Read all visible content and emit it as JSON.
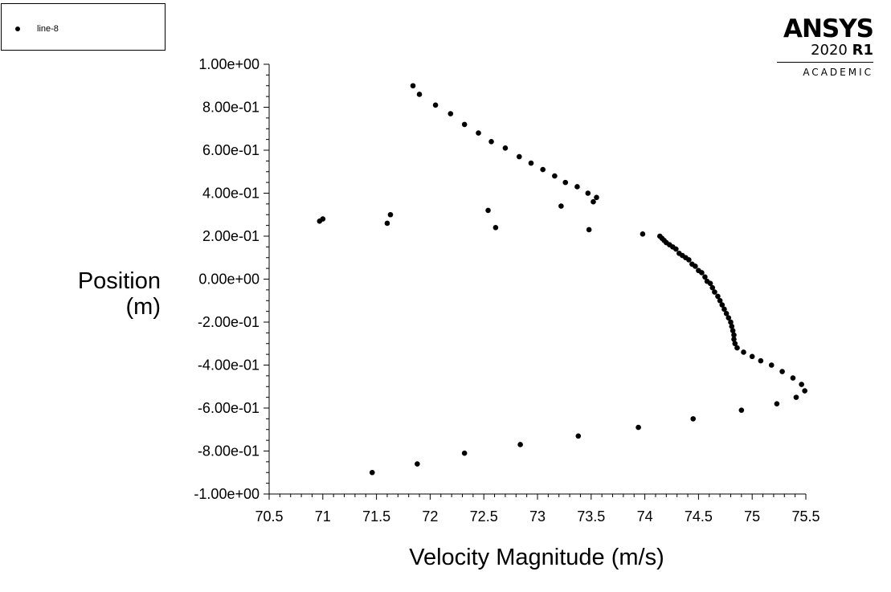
{
  "legend": {
    "label": "line-8"
  },
  "logo": {
    "brand": "ANSYS",
    "version": "2020",
    "release": "R1",
    "edition": "ACADEMIC"
  },
  "chart_data": {
    "type": "scatter",
    "xlabel": "Velocity Magnitude (m/s)",
    "ylabel_line1": "Position",
    "ylabel_line2": "(m)",
    "xlim": [
      70.5,
      75.5
    ],
    "ylim": [
      -1.0,
      1.0
    ],
    "x_ticks": [
      "70.5",
      "71",
      "71.5",
      "72",
      "72.5",
      "73",
      "73.5",
      "74",
      "74.5",
      "75",
      "75.5"
    ],
    "y_ticks": [
      "1.00e+00",
      "8.00e-01",
      "6.00e-01",
      "4.00e-01",
      "2.00e-01",
      "0.00e+00",
      "-2.00e-01",
      "-4.00e-01",
      "-6.00e-01",
      "-8.00e-01",
      "-1.00e+00"
    ],
    "grid": false,
    "legend_position": "top-left",
    "marker_color": "#000000",
    "series": [
      {
        "name": "line-8",
        "points": [
          [
            71.84,
            0.9
          ],
          [
            71.9,
            0.86
          ],
          [
            72.05,
            0.81
          ],
          [
            72.19,
            0.77
          ],
          [
            72.32,
            0.72
          ],
          [
            72.45,
            0.68
          ],
          [
            72.57,
            0.64
          ],
          [
            72.7,
            0.61
          ],
          [
            72.83,
            0.57
          ],
          [
            72.94,
            0.54
          ],
          [
            73.05,
            0.51
          ],
          [
            73.16,
            0.48
          ],
          [
            73.26,
            0.45
          ],
          [
            73.37,
            0.43
          ],
          [
            73.47,
            0.4
          ],
          [
            73.55,
            0.38
          ],
          [
            73.52,
            0.36
          ],
          [
            70.97,
            0.27
          ],
          [
            71.0,
            0.28
          ],
          [
            71.6,
            0.26
          ],
          [
            71.63,
            0.3
          ],
          [
            72.54,
            0.32
          ],
          [
            72.61,
            0.24
          ],
          [
            73.22,
            0.34
          ],
          [
            73.48,
            0.23
          ],
          [
            73.98,
            0.21
          ],
          [
            74.14,
            0.2
          ],
          [
            74.16,
            0.19
          ],
          [
            74.18,
            0.18
          ],
          [
            74.2,
            0.17
          ],
          [
            74.23,
            0.16
          ],
          [
            74.26,
            0.15
          ],
          [
            74.29,
            0.14
          ],
          [
            74.32,
            0.12
          ],
          [
            74.35,
            0.11
          ],
          [
            74.38,
            0.1
          ],
          [
            74.41,
            0.09
          ],
          [
            74.44,
            0.07
          ],
          [
            74.47,
            0.06
          ],
          [
            74.5,
            0.04
          ],
          [
            74.53,
            0.03
          ],
          [
            74.56,
            0.01
          ],
          [
            74.58,
            -0.01
          ],
          [
            74.61,
            -0.02
          ],
          [
            74.63,
            -0.04
          ],
          [
            74.65,
            -0.06
          ],
          [
            74.68,
            -0.08
          ],
          [
            74.7,
            -0.1
          ],
          [
            74.72,
            -0.12
          ],
          [
            74.74,
            -0.14
          ],
          [
            74.76,
            -0.16
          ],
          [
            74.78,
            -0.18
          ],
          [
            74.8,
            -0.2
          ],
          [
            74.81,
            -0.22
          ],
          [
            74.82,
            -0.24
          ],
          [
            74.83,
            -0.26
          ],
          [
            74.83,
            -0.28
          ],
          [
            74.84,
            -0.3
          ],
          [
            74.86,
            -0.32
          ],
          [
            74.92,
            -0.34
          ],
          [
            75.0,
            -0.36
          ],
          [
            75.08,
            -0.38
          ],
          [
            75.18,
            -0.4
          ],
          [
            75.28,
            -0.43
          ],
          [
            75.38,
            -0.46
          ],
          [
            75.46,
            -0.49
          ],
          [
            75.49,
            -0.52
          ],
          [
            75.41,
            -0.55
          ],
          [
            75.23,
            -0.58
          ],
          [
            74.9,
            -0.61
          ],
          [
            74.45,
            -0.65
          ],
          [
            73.94,
            -0.69
          ],
          [
            73.38,
            -0.73
          ],
          [
            72.84,
            -0.77
          ],
          [
            72.32,
            -0.81
          ],
          [
            71.88,
            -0.86
          ],
          [
            71.46,
            -0.9
          ]
        ]
      }
    ]
  }
}
